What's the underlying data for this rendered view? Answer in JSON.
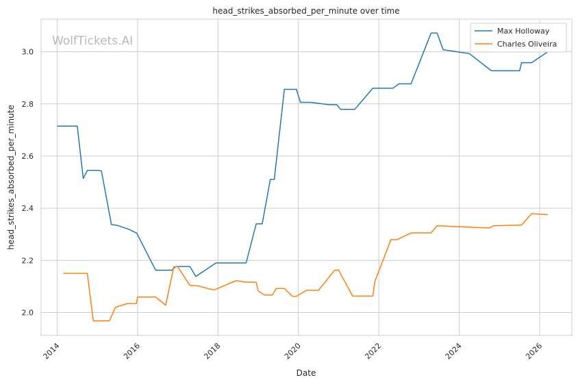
{
  "chart_data": {
    "type": "line",
    "title": "head_strikes_absorbed_per_minute over time",
    "xlabel": "Date",
    "ylabel": "head_strikes_absorbed_per_minute",
    "xlim": [
      2013.6,
      2026.8
    ],
    "ylim": [
      1.912,
      3.125
    ],
    "x_ticks": [
      2014,
      2016,
      2018,
      2020,
      2022,
      2024,
      2026
    ],
    "x_tick_labels": [
      "2014",
      "2016",
      "2018",
      "2020",
      "2022",
      "2024",
      "2026"
    ],
    "y_ticks": [
      2.0,
      2.2,
      2.4,
      2.6,
      2.8,
      3.0
    ],
    "y_tick_labels": [
      "2.0",
      "2.2",
      "2.4",
      "2.6",
      "2.8",
      "3.0"
    ],
    "grid": true,
    "legend_position": "top-right",
    "watermark": "WolfTickets.AI",
    "series": [
      {
        "name": "Max Holloway",
        "color": "#1f77b4",
        "x": [
          2014.0,
          2014.5,
          2014.65,
          2014.75,
          2015.0,
          2015.1,
          2015.35,
          2015.5,
          2015.8,
          2015.98,
          2016.45,
          2016.85,
          2016.95,
          2017.3,
          2017.45,
          2017.95,
          2018.7,
          2018.95,
          2019.1,
          2019.3,
          2019.4,
          2019.65,
          2019.95,
          2020.05,
          2020.3,
          2020.75,
          2020.95,
          2021.05,
          2021.4,
          2021.85,
          2022.35,
          2022.5,
          2022.8,
          2023.3,
          2023.45,
          2023.6,
          2024.25,
          2024.8,
          2025.5,
          2025.55,
          2025.8,
          2026.2
        ],
        "values": [
          2.715,
          2.715,
          2.514,
          2.545,
          2.545,
          2.543,
          2.337,
          2.334,
          2.318,
          2.304,
          2.162,
          2.162,
          2.176,
          2.176,
          2.138,
          2.19,
          2.19,
          2.34,
          2.34,
          2.51,
          2.51,
          2.856,
          2.856,
          2.806,
          2.806,
          2.797,
          2.797,
          2.779,
          2.779,
          2.86,
          2.86,
          2.877,
          2.877,
          3.072,
          3.072,
          3.008,
          2.993,
          2.927,
          2.927,
          2.958,
          2.958,
          3.0
        ]
      },
      {
        "name": "Charles Oliveira",
        "color": "#ff7f0e",
        "x": [
          2014.15,
          2014.75,
          2014.9,
          2015.3,
          2015.45,
          2015.75,
          2015.97,
          2016.0,
          2016.45,
          2016.7,
          2016.9,
          2017.0,
          2017.3,
          2017.5,
          2017.9,
          2018.45,
          2018.7,
          2018.95,
          2019.0,
          2019.15,
          2019.35,
          2019.45,
          2019.65,
          2019.85,
          2019.95,
          2020.2,
          2020.5,
          2020.9,
          2021.0,
          2021.35,
          2021.85,
          2021.9,
          2022.3,
          2022.45,
          2022.8,
          2023.3,
          2023.45,
          2024.75,
          2024.85,
          2025.55,
          2025.8,
          2026.2
        ],
        "values": [
          2.15,
          2.15,
          1.968,
          1.968,
          2.02,
          2.034,
          2.034,
          2.059,
          2.059,
          2.028,
          2.175,
          2.175,
          2.104,
          2.102,
          2.086,
          2.122,
          2.116,
          2.116,
          2.083,
          2.067,
          2.067,
          2.092,
          2.092,
          2.062,
          2.062,
          2.085,
          2.085,
          2.162,
          2.162,
          2.063,
          2.063,
          2.118,
          2.279,
          2.279,
          2.305,
          2.305,
          2.333,
          2.324,
          2.333,
          2.335,
          2.379,
          2.375
        ]
      }
    ]
  }
}
